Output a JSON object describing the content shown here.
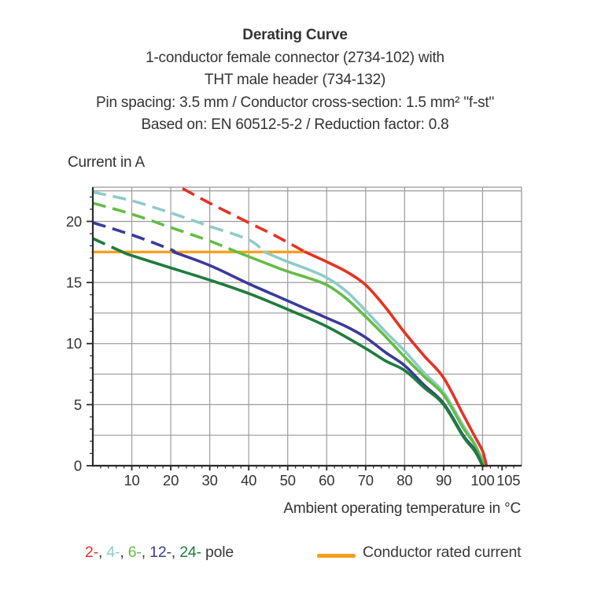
{
  "title": {
    "lines": [
      "Derating Curve",
      "1-conductor female connector (2734-102) with",
      "THT male header (734-132)",
      "Pin spacing: 3.5 mm / Conductor cross-section: 1.5 mm² \"f-st\"",
      "Based on: EN 60512-5-2 / Reduction factor: 0.8"
    ]
  },
  "colors": {
    "text": "#333333",
    "grid": "#9B9B9B",
    "axis": "#2A2A2A",
    "pole2": "#E63222",
    "pole4": "#8FCBC8",
    "pole6": "#65BD45",
    "pole12": "#3B3A9B",
    "pole24": "#1F7C3D",
    "rated": "#F6A01E"
  },
  "chart_data": {
    "type": "line",
    "title": "Derating Curve",
    "xlabel": "Ambient operating temperature in °C",
    "ylabel": "Current in A",
    "xlim": [
      0,
      110
    ],
    "ylim": [
      0,
      22.8
    ],
    "x_ticks": [
      10,
      20,
      30,
      40,
      50,
      60,
      70,
      80,
      90,
      100,
      105
    ],
    "y_ticks": [
      0,
      5,
      10,
      15,
      20
    ],
    "grid": {
      "x_step": 10,
      "y_step": 2.5,
      "x_minor_step": 2,
      "y_minor_step": 1
    },
    "legend_position": "bottom",
    "style_note": "curve segments above the conductor rated current are dashed, below are solid",
    "rated_current": {
      "label": "Conductor rated current",
      "value": 17.5,
      "x_start": 0,
      "x_end": 54.5,
      "color": "#F6A01E"
    },
    "series": [
      {
        "name": "4-pole",
        "color": "#8FCBC8",
        "dashed": [
          [
            0,
            22.4
          ],
          [
            10,
            21.7
          ],
          [
            20,
            20.7
          ],
          [
            30,
            19.6
          ],
          [
            40,
            18.5
          ],
          [
            44,
            17.5
          ]
        ],
        "solid": [
          [
            44,
            17.5
          ],
          [
            50,
            16.7
          ],
          [
            55,
            16.1
          ],
          [
            60,
            15.4
          ],
          [
            65,
            14.3
          ],
          [
            70,
            12.7
          ],
          [
            75,
            11.0
          ],
          [
            80,
            9.4
          ],
          [
            85,
            7.6
          ],
          [
            90,
            6.0
          ],
          [
            95,
            3.3
          ],
          [
            98,
            1.8
          ],
          [
            100.6,
            0
          ]
        ]
      },
      {
        "name": "6-pole",
        "color": "#65BD45",
        "dashed": [
          [
            0,
            21.5
          ],
          [
            10,
            20.6
          ],
          [
            20,
            19.5
          ],
          [
            30,
            18.4
          ],
          [
            37,
            17.5
          ]
        ],
        "solid": [
          [
            37,
            17.5
          ],
          [
            45,
            16.5
          ],
          [
            50,
            15.9
          ],
          [
            55,
            15.4
          ],
          [
            60,
            14.8
          ],
          [
            65,
            13.7
          ],
          [
            70,
            12.2
          ],
          [
            75,
            10.6
          ],
          [
            80,
            8.9
          ],
          [
            85,
            7.3
          ],
          [
            90,
            5.8
          ],
          [
            95,
            3.1
          ],
          [
            98,
            1.7
          ],
          [
            100.4,
            0
          ]
        ]
      },
      {
        "name": "12-pole",
        "color": "#3B3A9B",
        "dashed": [
          [
            0,
            19.9
          ],
          [
            10,
            18.9
          ],
          [
            20,
            17.7
          ],
          [
            20.7,
            17.5
          ]
        ],
        "solid": [
          [
            20.7,
            17.5
          ],
          [
            30,
            16.4
          ],
          [
            40,
            14.9
          ],
          [
            50,
            13.5
          ],
          [
            60,
            12.1
          ],
          [
            65,
            11.4
          ],
          [
            70,
            10.5
          ],
          [
            75,
            9.3
          ],
          [
            80,
            8.2
          ],
          [
            85,
            6.6
          ],
          [
            90,
            5.1
          ],
          [
            95,
            2.5
          ],
          [
            98,
            1.3
          ],
          [
            100,
            0
          ]
        ]
      },
      {
        "name": "24-pole",
        "color": "#1F7C3D",
        "dashed": [
          [
            0,
            18.6
          ],
          [
            7.6,
            17.5
          ]
        ],
        "solid": [
          [
            7.6,
            17.5
          ],
          [
            10,
            17.2
          ],
          [
            20,
            16.2
          ],
          [
            30,
            15.2
          ],
          [
            40,
            14.1
          ],
          [
            50,
            12.8
          ],
          [
            60,
            11.4
          ],
          [
            70,
            9.6
          ],
          [
            75,
            8.6
          ],
          [
            80,
            7.8
          ],
          [
            85,
            6.4
          ],
          [
            90,
            5.0
          ],
          [
            95,
            2.4
          ],
          [
            98,
            1.2
          ],
          [
            100,
            0
          ]
        ]
      },
      {
        "name": "2-pole",
        "color": "#E63222",
        "dashed": [
          [
            23,
            22.7
          ],
          [
            30,
            21.5
          ],
          [
            40,
            19.9
          ],
          [
            47,
            18.8
          ],
          [
            54.5,
            17.5
          ]
        ],
        "solid": [
          [
            54.5,
            17.5
          ],
          [
            60,
            16.7
          ],
          [
            65,
            15.9
          ],
          [
            70,
            14.8
          ],
          [
            75,
            13.0
          ],
          [
            80,
            10.9
          ],
          [
            85,
            9.0
          ],
          [
            90,
            7.2
          ],
          [
            95,
            4.2
          ],
          [
            98,
            2.4
          ],
          [
            100,
            1.2
          ],
          [
            101,
            0
          ]
        ]
      }
    ]
  },
  "legend": {
    "pole_labels": [
      {
        "text": "2-",
        "color": "#E63222"
      },
      {
        "text": "4-",
        "color": "#8FCBC8"
      },
      {
        "text": "6-",
        "color": "#65BD45"
      },
      {
        "text": "12-",
        "color": "#3B3A9B"
      },
      {
        "text": "24-",
        "color": "#1F7C3D"
      }
    ],
    "separator": ", ",
    "suffix": " pole",
    "rated_label": "Conductor rated current"
  }
}
